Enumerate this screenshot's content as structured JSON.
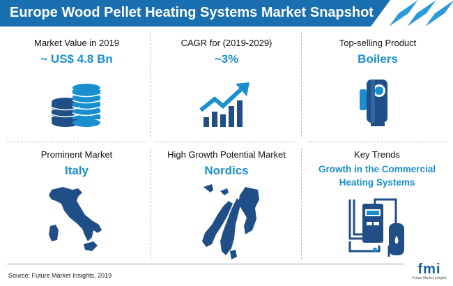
{
  "title": "Europe Wood Pellet Heating Systems Market Snapshot",
  "colors": {
    "header_blue": "#1a6fb0",
    "accent_blue": "#1a8fd0",
    "icon_dark": "#1f4f86"
  },
  "cells": [
    {
      "label": "Market Value in 2019",
      "value": "~ US$ 4.8 Bn",
      "icon": "coin-stack-icon"
    },
    {
      "label": "CAGR for (2019-2029)",
      "value": "~3%",
      "icon": "growth-chart-icon"
    },
    {
      "label": "Top-selling Product",
      "value": "Boilers",
      "icon": "boiler-icon"
    },
    {
      "label": "Prominent Market",
      "value": "Italy",
      "icon": "italy-map-icon"
    },
    {
      "label": "High Growth Potential Market",
      "value": "Nordics",
      "icon": "nordics-map-icon"
    },
    {
      "label": "Key Trends",
      "value_line1": "Growth in the Commercial",
      "value_line2": "Heating Systems",
      "icon": "heating-system-icon"
    }
  ],
  "source": "Source: Future Market Insights, 2019",
  "logo": {
    "text": "fmi",
    "subtext": "Future Market Insights"
  }
}
